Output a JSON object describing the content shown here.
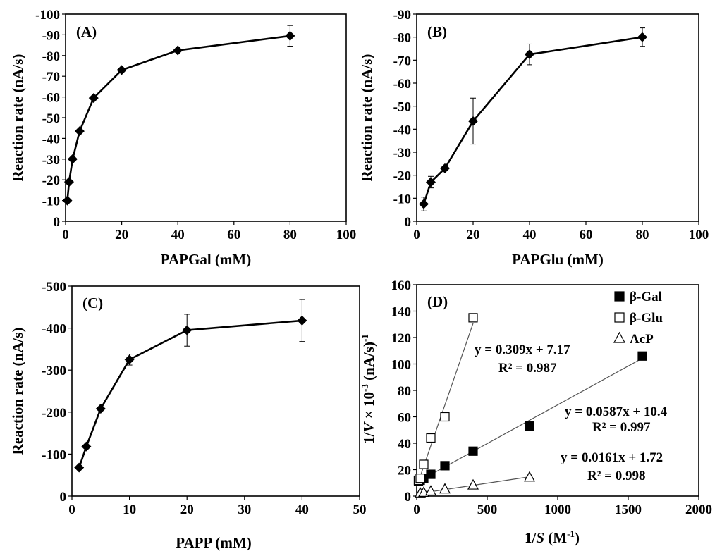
{
  "chart_data": [
    {
      "id": "A",
      "type": "line",
      "panel_label": "(A)",
      "xlabel": "PAPGal (mM)",
      "ylabel": "Reaction rate (nA/s)",
      "xlim": [
        0,
        100
      ],
      "ylim": [
        0,
        -100
      ],
      "xticks": [
        0,
        20,
        40,
        60,
        80,
        100
      ],
      "yticks": [
        0,
        -10,
        -20,
        -30,
        -40,
        -50,
        -60,
        -70,
        -80,
        -90,
        -100
      ],
      "xtick_labels": [
        "0",
        "20",
        "40",
        "60",
        "80",
        "100"
      ],
      "ytick_labels": [
        "0",
        "-10",
        "-20",
        "-30",
        "-40",
        "-50",
        "-60",
        "-70",
        "-80",
        "-90",
        "-100"
      ],
      "series": [
        {
          "name": "PAPGal",
          "marker": "diamond",
          "x": [
            0.625,
            1.25,
            2.5,
            5,
            10,
            20,
            40,
            80
          ],
          "y": [
            -10,
            -19,
            -30,
            -43.5,
            -59.5,
            -73,
            -82.5,
            -89.5
          ],
          "err": [
            0,
            0,
            0,
            0,
            0,
            0,
            0,
            5
          ]
        }
      ]
    },
    {
      "id": "B",
      "type": "line",
      "panel_label": "(B)",
      "xlabel": "PAPGlu (mM)",
      "ylabel": "Reaction rate (nA/s)",
      "xlim": [
        0,
        100
      ],
      "ylim": [
        0,
        -90
      ],
      "xticks": [
        0,
        20,
        40,
        60,
        80,
        100
      ],
      "yticks": [
        0,
        -10,
        -20,
        -30,
        -40,
        -50,
        -60,
        -70,
        -80,
        -90
      ],
      "xtick_labels": [
        "0",
        "20",
        "40",
        "60",
        "80",
        "100"
      ],
      "ytick_labels": [
        "0",
        "-10",
        "-20",
        "-30",
        "-40",
        "-50",
        "-60",
        "-70",
        "-80",
        "-90"
      ],
      "series": [
        {
          "name": "PAPGlu",
          "marker": "diamond",
          "x": [
            2.5,
            5,
            10,
            20,
            40,
            80
          ],
          "y": [
            -7.5,
            -17,
            -23,
            -43.5,
            -72.5,
            -80
          ],
          "err": [
            3,
            2.5,
            0,
            10,
            4.5,
            4
          ]
        }
      ]
    },
    {
      "id": "C",
      "type": "line",
      "panel_label": "(C)",
      "xlabel": "PAPP (mM)",
      "ylabel": "Reaction rate (nA/s)",
      "xlim": [
        0,
        50
      ],
      "ylim": [
        0,
        -500
      ],
      "xticks": [
        0,
        10,
        20,
        30,
        40,
        50
      ],
      "yticks": [
        0,
        -100,
        -200,
        -300,
        -400,
        -500
      ],
      "xtick_labels": [
        "0",
        "10",
        "20",
        "30",
        "40",
        "50"
      ],
      "ytick_labels": [
        "0",
        "-100",
        "-200",
        "-300",
        "-400",
        "-500"
      ],
      "series": [
        {
          "name": "PAPP",
          "marker": "diamond",
          "x": [
            1.25,
            2.5,
            5,
            10,
            20,
            40
          ],
          "y": [
            -68,
            -118,
            -208,
            -325,
            -395,
            -418
          ],
          "err": [
            0,
            0,
            0,
            13,
            38,
            50
          ]
        }
      ]
    },
    {
      "id": "D",
      "type": "scatter",
      "panel_label": "(D)",
      "xlabel": "1/S (M⁻¹)",
      "ylabel": "1/V × 10⁻³ (nA/s)⁻¹",
      "xlim": [
        0,
        2000
      ],
      "ylim": [
        0,
        160
      ],
      "xticks": [
        0,
        500,
        1000,
        1500,
        2000
      ],
      "yticks": [
        0,
        20,
        40,
        60,
        80,
        100,
        120,
        140,
        160
      ],
      "xtick_labels": [
        "0",
        "500",
        "1000",
        "1500",
        "2000"
      ],
      "ytick_labels": [
        "0",
        "20",
        "40",
        "60",
        "80",
        "100",
        "120",
        "140",
        "160"
      ],
      "series": [
        {
          "name": "β-Gal",
          "marker": "filled-square",
          "x": [
            12.5,
            25,
            50,
            100,
            200,
            400,
            800,
            1600
          ],
          "y": [
            11.5,
            12,
            13.5,
            16.5,
            23,
            34,
            53,
            106
          ],
          "fit": {
            "slope": 0.0587,
            "intercept": 10.4,
            "equation": "y = 0.0587x + 10.4",
            "r2": "R² = 0.997"
          }
        },
        {
          "name": "β-Glu",
          "marker": "open-square",
          "x": [
            12.5,
            25,
            50,
            100,
            200,
            400
          ],
          "y": [
            12,
            13.5,
            24,
            44,
            60,
            135
          ],
          "fit": {
            "slope": 0.309,
            "intercept": 7.17,
            "equation": "y = 0.309x + 7.17",
            "r2": "R² = 0.987"
          }
        },
        {
          "name": "AcP",
          "marker": "open-triangle",
          "x": [
            25,
            50,
            100,
            200,
            400,
            800
          ],
          "y": [
            2.5,
            3,
            4,
            5.5,
            8.5,
            14.5
          ],
          "fit": {
            "slope": 0.0161,
            "intercept": 1.72,
            "equation": "y = 0.0161x + 1.72",
            "r2": "R² = 0.998"
          }
        }
      ],
      "legend": [
        "β-Gal",
        "β-Glu",
        "AcP"
      ]
    }
  ]
}
